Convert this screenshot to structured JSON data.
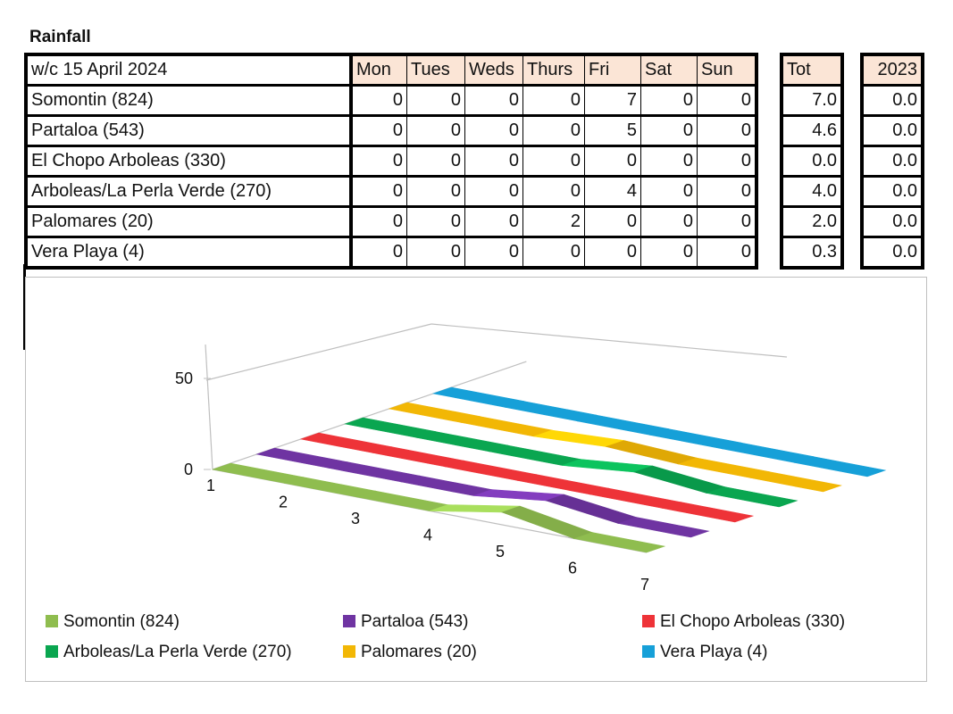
{
  "title": "Rainfall",
  "table": {
    "week_label": "w/c  15 April 2024",
    "days": [
      "Mon",
      "Tues",
      "Weds",
      "Thurs",
      "Fri",
      "Sat",
      "Sun"
    ],
    "tot_label": "Tot",
    "year_label": "2023",
    "rows": [
      {
        "site": "Somontin (824)",
        "days": [
          "0",
          "0",
          "0",
          "0",
          "7",
          "0",
          "0"
        ],
        "tot": "7.0",
        "year": "0.0"
      },
      {
        "site": "Partaloa (543)",
        "days": [
          "0",
          "0",
          "0",
          "0",
          "5",
          "0",
          "0"
        ],
        "tot": "4.6",
        "year": "0.0"
      },
      {
        "site": "El Chopo Arboleas (330)",
        "days": [
          "0",
          "0",
          "0",
          "0",
          "0",
          "0",
          "0"
        ],
        "tot": "0.0",
        "year": "0.0"
      },
      {
        "site": "Arboleas/La Perla Verde (270)",
        "days": [
          "0",
          "0",
          "0",
          "0",
          "4",
          "0",
          "0"
        ],
        "tot": "4.0",
        "year": "0.0"
      },
      {
        "site": "Palomares (20)",
        "days": [
          "0",
          "0",
          "0",
          "2",
          "0",
          "0",
          "0"
        ],
        "tot": "2.0",
        "year": "0.0"
      },
      {
        "site": "Vera Playa (4)",
        "days": [
          "0",
          "0",
          "0",
          "0",
          "0",
          "0",
          "0"
        ],
        "tot": "0.3",
        "year": "0.0"
      }
    ]
  },
  "chart_data": {
    "type": "area",
    "x": [
      1,
      2,
      3,
      4,
      5,
      6,
      7
    ],
    "y_ticks": [
      0,
      50
    ],
    "ylim": [
      0,
      50
    ],
    "grid": false,
    "legend_position": "bottom",
    "series": [
      {
        "name": "Somontin (824)",
        "values": [
          0,
          0,
          0,
          0,
          7,
          0,
          0
        ],
        "color": "#8fbd4f"
      },
      {
        "name": "Partaloa (543)",
        "values": [
          0,
          0,
          0,
          0,
          5,
          0,
          0
        ],
        "color": "#6f34a2"
      },
      {
        "name": "El Chopo Arboleas (330)",
        "values": [
          0,
          0,
          0,
          0,
          0,
          0,
          0
        ],
        "color": "#ee3338"
      },
      {
        "name": "Arboleas/La Perla Verde (270)",
        "values": [
          0,
          0,
          0,
          0,
          4,
          0,
          0
        ],
        "color": "#0aa650"
      },
      {
        "name": "Palomares (20)",
        "values": [
          0,
          0,
          0,
          2,
          0,
          0,
          0
        ],
        "color": "#f2b705"
      },
      {
        "name": "Vera Playa (4)",
        "values": [
          0,
          0,
          0,
          0,
          0,
          0,
          0
        ],
        "color": "#16a0d8"
      }
    ]
  }
}
